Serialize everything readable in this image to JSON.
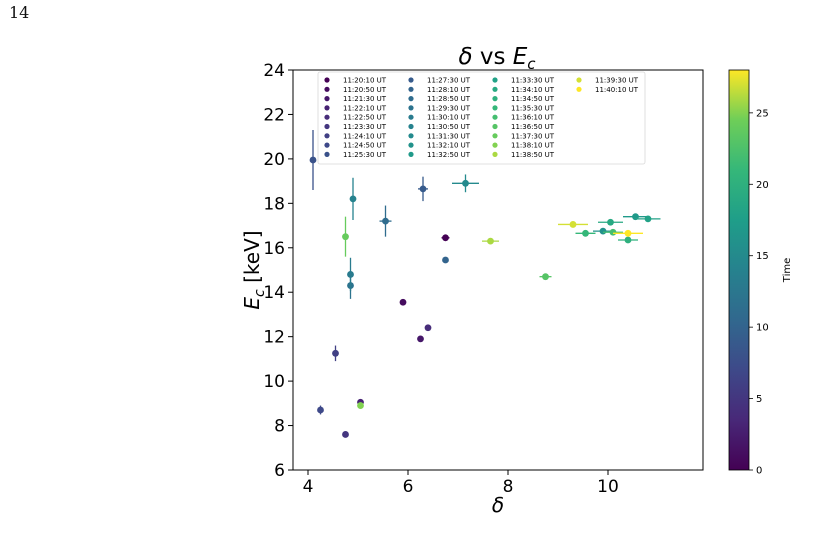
{
  "page": {
    "number": "14"
  },
  "chart_data": {
    "type": "scatter",
    "title_parts": {
      "a": "δ",
      "b": " vs ",
      "c": "E",
      "sub": "c"
    },
    "xlabel": "δ",
    "ylabel_parts": {
      "a": "E",
      "sub": "c",
      "b": " [keV]"
    },
    "xlim": [
      3.7,
      11.9
    ],
    "ylim": [
      6,
      24
    ],
    "xticks": [
      4,
      6,
      8,
      10
    ],
    "yticks": [
      6,
      8,
      10,
      12,
      14,
      16,
      18,
      20,
      22,
      24
    ],
    "grid": false,
    "legend_position": "top-center",
    "colorbar": {
      "label": "Time",
      "range": [
        0,
        28
      ],
      "ticks": [
        0,
        5,
        10,
        15,
        20,
        25
      ],
      "colormap": "viridis"
    },
    "series": [
      {
        "name": "11:20:10 UT",
        "t": 0,
        "x": 6.75,
        "y": 16.45,
        "xerr": 0.08,
        "yerr": 0.15
      },
      {
        "name": "11:20:50 UT",
        "t": 1,
        "x": 5.9,
        "y": 13.55,
        "xerr": 0,
        "yerr": 0
      },
      {
        "name": "11:21:30 UT",
        "t": 2,
        "x": 6.25,
        "y": 11.9,
        "xerr": 0,
        "yerr": 0
      },
      {
        "name": "11:22:10 UT",
        "t": 3,
        "x": 5.05,
        "y": 9.05,
        "xerr": 0,
        "yerr": 0
      },
      {
        "name": "11:22:50 UT",
        "t": 4,
        "x": 6.4,
        "y": 12.4,
        "xerr": 0,
        "yerr": 0
      },
      {
        "name": "11:23:30 UT",
        "t": 5,
        "x": 4.75,
        "y": 7.6,
        "xerr": 0,
        "yerr": 0
      },
      {
        "name": "11:24:10 UT",
        "t": 6,
        "x": 4.55,
        "y": 11.25,
        "xerr": 0,
        "yerr": 0.35
      },
      {
        "name": "11:24:50 UT",
        "t": 7,
        "x": 4.25,
        "y": 8.7,
        "xerr": 0,
        "yerr": 0.2
      },
      {
        "name": "11:25:30 UT",
        "t": 8,
        "x": 4.1,
        "y": 19.95,
        "xerr": 0,
        "yerr": 1.35
      },
      {
        "name": "11:27:30 UT",
        "t": 9,
        "x": 6.3,
        "y": 18.65,
        "xerr": 0.1,
        "yerr": 0.55
      },
      {
        "name": "11:28:10 UT",
        "t": 10,
        "x": 6.75,
        "y": 15.45,
        "xerr": 0,
        "yerr": 0
      },
      {
        "name": "11:28:50 UT",
        "t": 11,
        "x": 5.55,
        "y": 17.2,
        "xerr": 0.12,
        "yerr": 0.7
      },
      {
        "name": "11:29:30 UT",
        "t": 12,
        "x": 4.85,
        "y": 14.3,
        "xerr": 0,
        "yerr": 0.6
      },
      {
        "name": "11:30:10 UT",
        "t": 13,
        "x": 4.85,
        "y": 14.8,
        "xerr": 0,
        "yerr": 0.75
      },
      {
        "name": "11:30:50 UT",
        "t": 14,
        "x": 4.9,
        "y": 18.2,
        "xerr": 0,
        "yerr": 0.95
      },
      {
        "name": "11:31:30 UT",
        "t": 15,
        "x": 7.15,
        "y": 18.9,
        "xerr": 0.27,
        "yerr": 0.4
      },
      {
        "name": "11:32:10 UT",
        "t": 16,
        "x": 9.9,
        "y": 16.75,
        "xerr": 0.2,
        "yerr": 0.1
      },
      {
        "name": "11:32:50 UT",
        "t": 17,
        "x": 10.55,
        "y": 17.4,
        "xerr": 0.25,
        "yerr": 0.1
      },
      {
        "name": "11:33:30 UT",
        "t": 18,
        "x": 10.8,
        "y": 17.3,
        "xerr": 0.25,
        "yerr": 0.1
      },
      {
        "name": "11:34:10 UT",
        "t": 19,
        "x": 10.05,
        "y": 17.15,
        "xerr": 0.25,
        "yerr": 0.1
      },
      {
        "name": "11:34:50 UT",
        "t": 20,
        "x": 10.4,
        "y": 16.35,
        "xerr": 0.2,
        "yerr": 0.1
      },
      {
        "name": "11:35:30 UT",
        "t": 21,
        "x": 9.55,
        "y": 16.65,
        "xerr": 0.2,
        "yerr": 0.1
      },
      {
        "name": "11:36:10 UT",
        "t": 22,
        "x": 10.1,
        "y": 16.7,
        "xerr": 0.2,
        "yerr": 0.1
      },
      {
        "name": "11:36:50 UT",
        "t": 23,
        "x": 8.75,
        "y": 14.7,
        "xerr": 0.12,
        "yerr": 0.1
      },
      {
        "name": "11:37:30 UT",
        "t": 24,
        "x": 4.75,
        "y": 16.5,
        "xerr": 0,
        "yerr": 0.9
      },
      {
        "name": "11:38:10 UT",
        "t": 25,
        "x": 5.05,
        "y": 8.9,
        "xerr": 0,
        "yerr": 0
      },
      {
        "name": "11:38:50 UT",
        "t": 26,
        "x": 7.65,
        "y": 16.3,
        "xerr": 0.17,
        "yerr": 0.1
      },
      {
        "name": "11:39:30 UT",
        "t": 27,
        "x": 9.3,
        "y": 17.05,
        "xerr": 0.3,
        "yerr": 0.1
      },
      {
        "name": "11:40:10 UT",
        "t": 28,
        "x": 10.4,
        "y": 16.65,
        "xerr": 0.3,
        "yerr": 0.1
      }
    ]
  }
}
